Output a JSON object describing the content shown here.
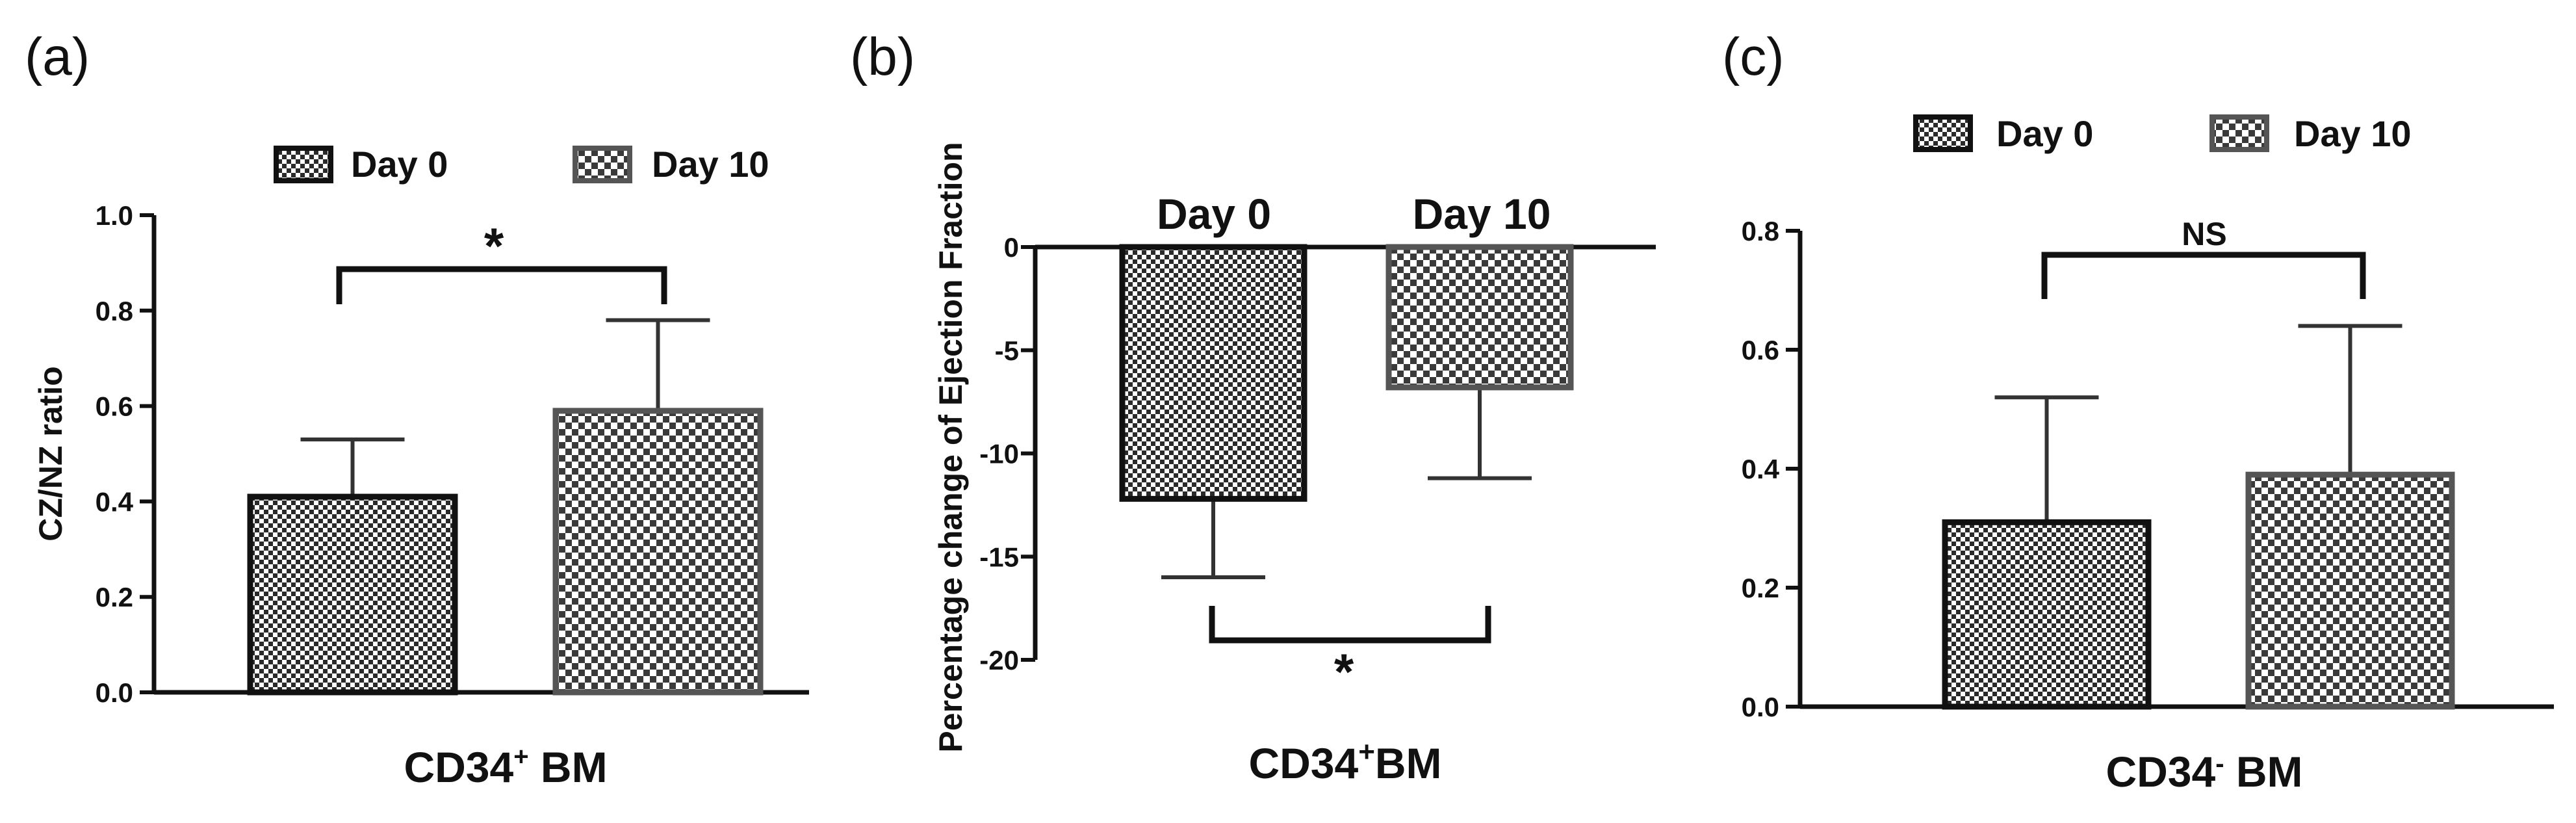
{
  "chart_data": [
    {
      "type": "bar",
      "panel_label": "(a)",
      "categories": [
        "Day 0",
        "Day 10"
      ],
      "values": [
        0.41,
        0.59
      ],
      "error": [
        0.12,
        0.19
      ],
      "error_direction": "up",
      "ylabel": "CZ/NZ ratio",
      "xlabel": "CD34",
      "xlabel_sup": "+",
      "xlabel_tail": " BM",
      "ylim": [
        0.0,
        1.0
      ],
      "yticks": [
        "0.0",
        "0.2",
        "0.4",
        "0.6",
        "0.8",
        "1.0"
      ],
      "legend": [
        "Day 0",
        "Day 10"
      ],
      "legend_position": "top",
      "significance": "*",
      "grid": false
    },
    {
      "type": "bar",
      "panel_label": "(b)",
      "categories": [
        "Day 0",
        "Day 10"
      ],
      "values": [
        -12.2,
        -6.8
      ],
      "error": [
        3.8,
        4.4
      ],
      "error_direction": "down",
      "ylabel": "Percentage  change of Ejection Fraction",
      "xlabel": "CD34",
      "xlabel_sup": "+",
      "xlabel_tail": "BM",
      "ylim": [
        -20,
        0
      ],
      "yticks": [
        "-20",
        "-15",
        "-10",
        "-5",
        "0"
      ],
      "category_labels_position": "top",
      "significance": "*",
      "grid": false
    },
    {
      "type": "bar",
      "panel_label": "(c)",
      "categories": [
        "Day 0",
        "Day 10"
      ],
      "values": [
        0.31,
        0.39
      ],
      "error": [
        0.21,
        0.25
      ],
      "error_direction": "up",
      "ylabel": "",
      "xlabel": "CD34",
      "xlabel_sup": "-",
      "xlabel_tail": " BM",
      "ylim": [
        0.0,
        0.8
      ],
      "yticks": [
        "0.0",
        "0.2",
        "0.4",
        "0.6",
        "0.8"
      ],
      "legend": [
        "Day 0",
        "Day 10"
      ],
      "legend_position": "top",
      "significance": "NS",
      "grid": false
    }
  ]
}
